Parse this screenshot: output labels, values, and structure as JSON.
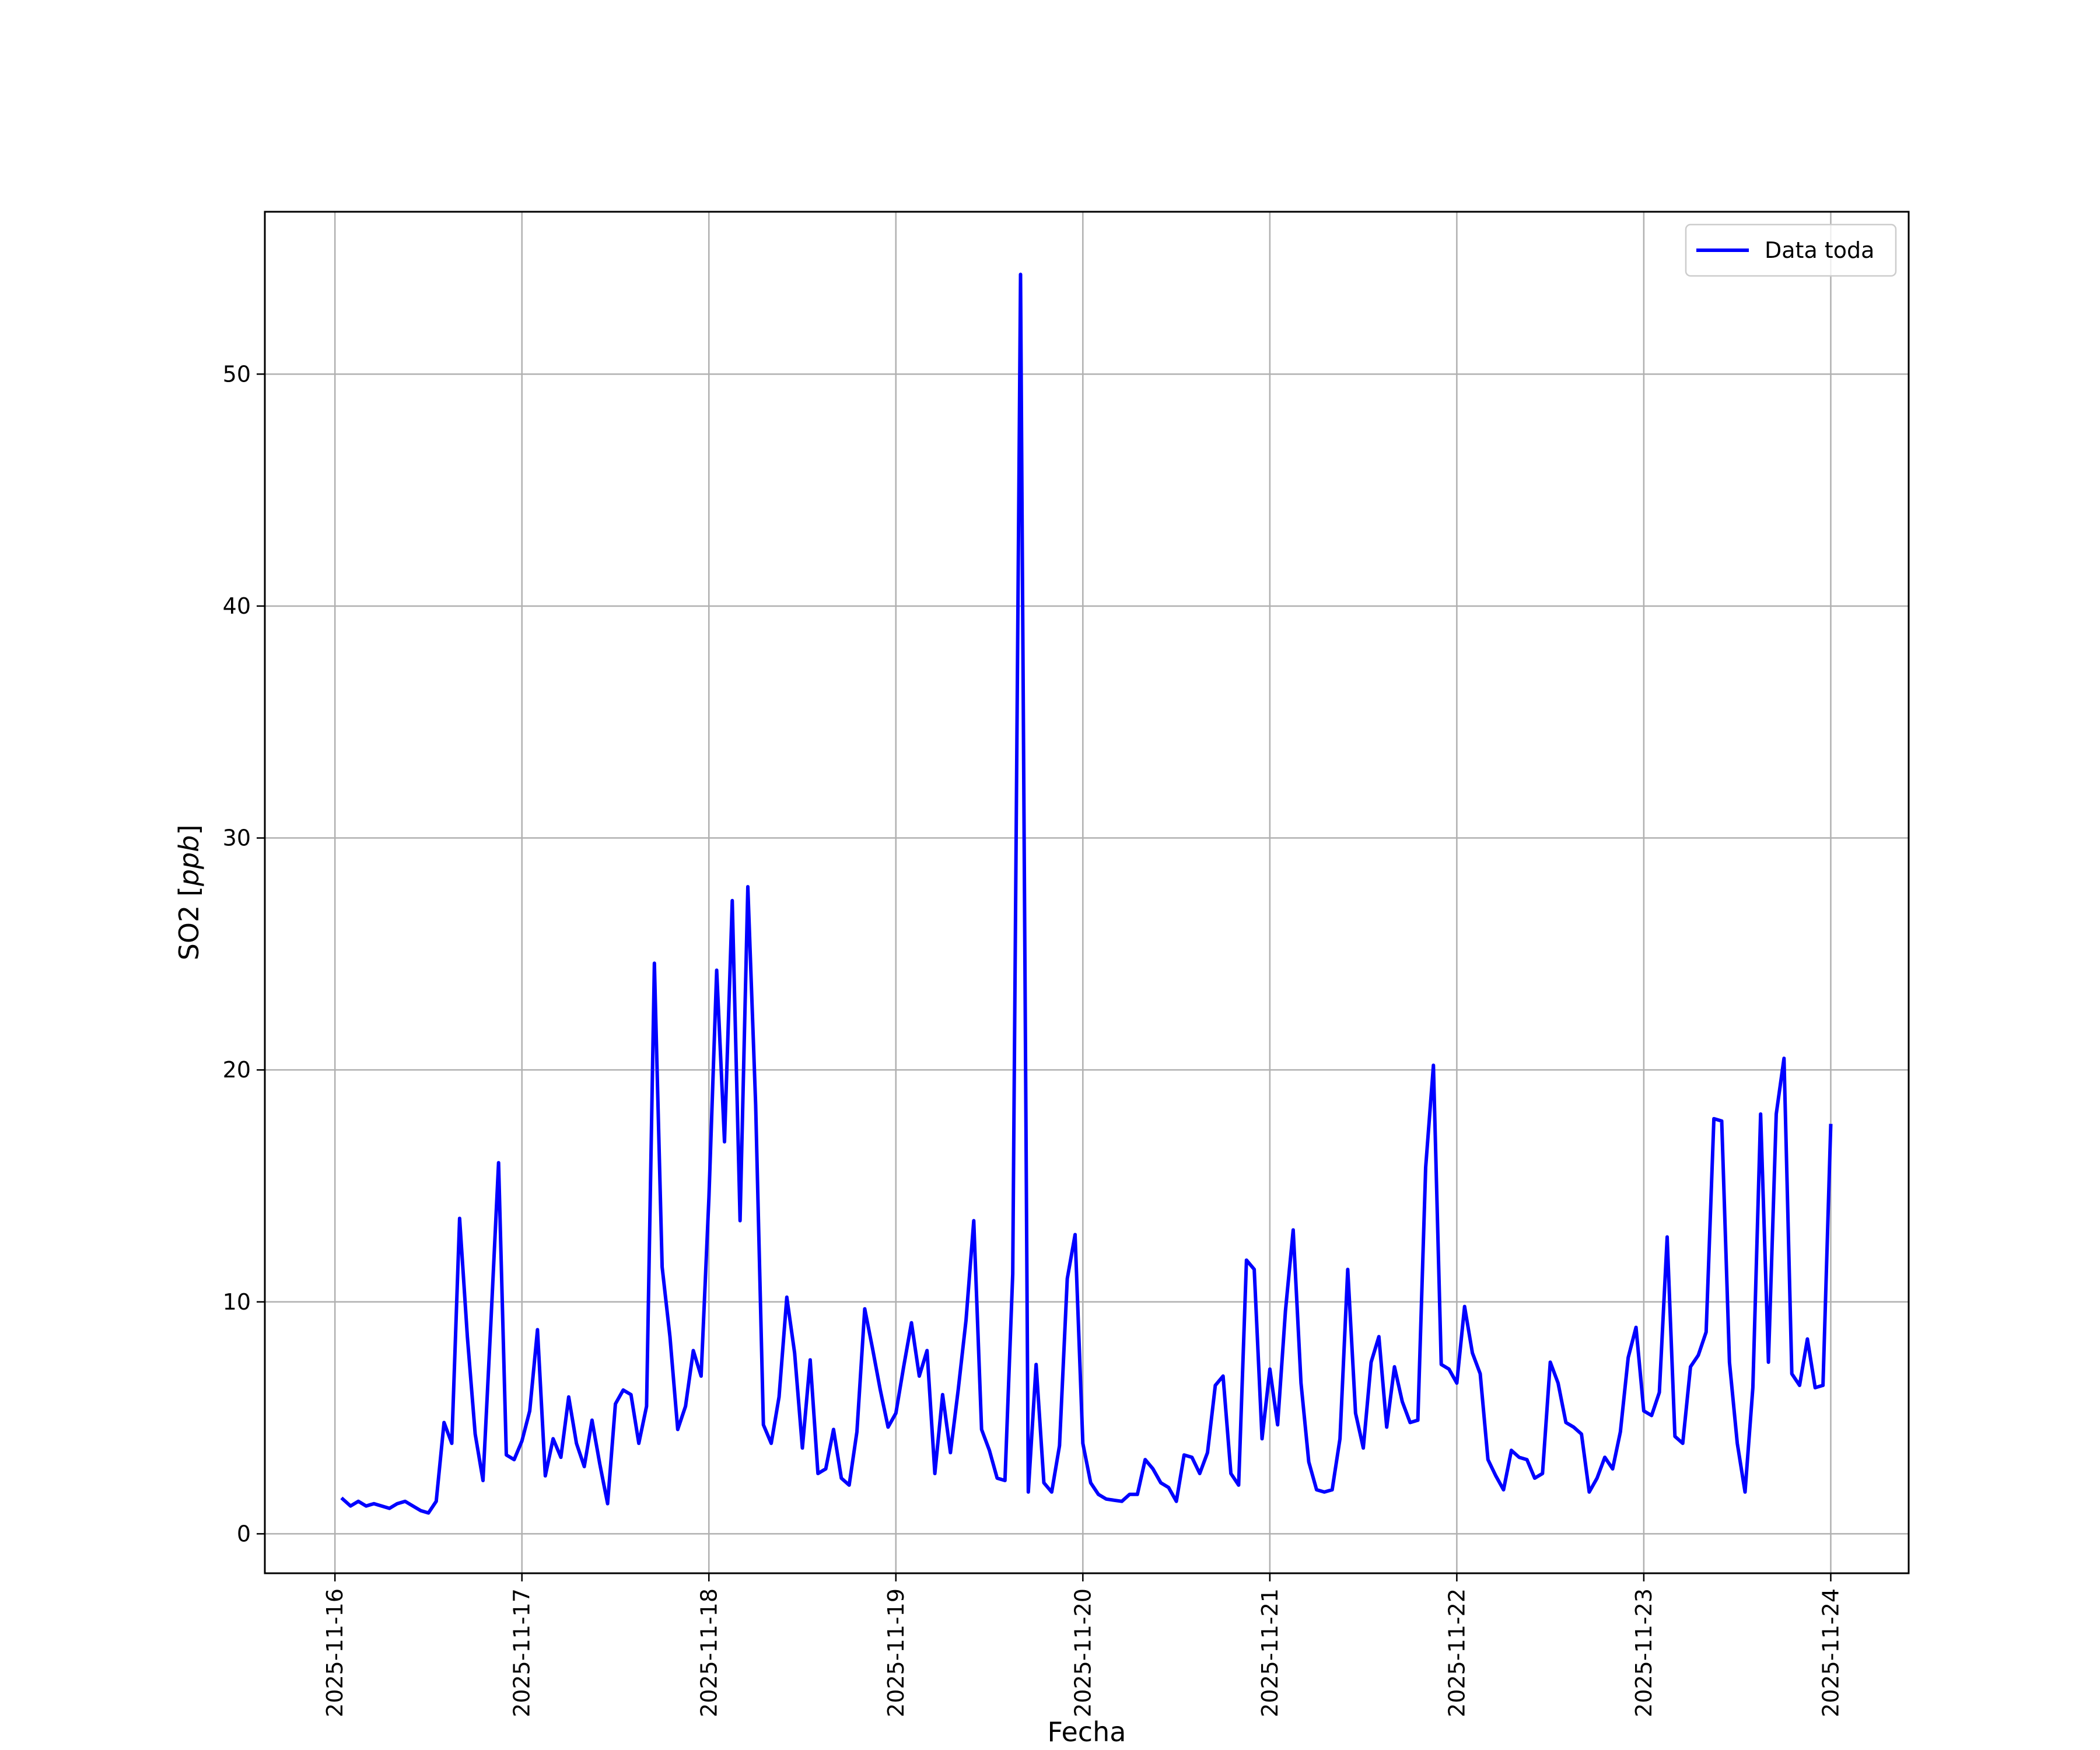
{
  "chart_data": {
    "type": "line",
    "title": "",
    "xlabel": "Fecha",
    "ylabel": "SO2 [",
    "ylabel_math": "ppb",
    "ylabel_close": "]",
    "x_ticks": [
      "2025-11-16",
      "2025-11-17",
      "2025-11-18",
      "2025-11-19",
      "2025-11-20",
      "2025-11-21",
      "2025-11-22",
      "2025-11-23",
      "2025-11-24"
    ],
    "y_ticks": [
      0,
      10,
      20,
      30,
      40,
      50
    ],
    "x_range": [
      "2025-11-15T15:00",
      "2025-11-24T10:00"
    ],
    "ylim": [
      -1.7,
      57
    ],
    "grid": true,
    "legend_position": "top-right",
    "series": [
      {
        "name": "Data toda",
        "color": "#0000ff",
        "x_start": "2025-11-16T01:00",
        "step_hours": 1,
        "values": [
          1.5,
          1.2,
          1.4,
          1.2,
          1.3,
          1.2,
          1.1,
          1.3,
          1.4,
          1.2,
          1.0,
          0.9,
          1.4,
          4.8,
          3.9,
          13.6,
          8.5,
          4.3,
          2.3,
          9.0,
          16.0,
          3.4,
          3.2,
          4.0,
          5.3,
          8.8,
          2.5,
          4.1,
          3.3,
          5.9,
          3.9,
          2.9,
          4.9,
          3.0,
          1.3,
          5.6,
          6.2,
          6.0,
          3.9,
          5.5,
          24.6,
          11.5,
          8.5,
          4.5,
          5.5,
          7.9,
          6.8,
          14.5,
          24.3,
          16.9,
          27.3,
          13.5,
          27.9,
          18.5,
          4.7,
          3.9,
          5.9,
          10.2,
          7.8,
          3.7,
          7.5,
          2.6,
          2.8,
          4.5,
          2.4,
          2.1,
          4.4,
          9.7,
          8.0,
          6.2,
          4.6,
          5.2,
          7.2,
          9.1,
          6.8,
          7.9,
          2.6,
          6.0,
          3.5,
          6.2,
          9.2,
          13.5,
          4.5,
          3.6,
          2.4,
          2.3,
          11.2,
          54.3,
          1.8,
          7.3,
          2.2,
          1.8,
          3.8,
          11.0,
          12.9,
          3.9,
          2.2,
          1.7,
          1.5,
          1.45,
          1.4,
          1.7,
          1.7,
          3.2,
          2.8,
          2.2,
          2.0,
          1.4,
          3.4,
          3.3,
          2.6,
          3.5,
          6.4,
          6.8,
          2.6,
          2.1,
          11.8,
          11.4,
          4.1,
          7.1,
          4.7,
          9.6,
          13.1,
          6.5,
          3.1,
          1.9,
          1.8,
          1.9,
          4.1,
          11.4,
          5.2,
          3.7,
          7.4,
          8.5,
          4.6,
          7.2,
          5.7,
          4.8,
          4.9,
          15.8,
          20.2,
          7.3,
          7.1,
          6.5,
          9.8,
          7.8,
          6.9,
          3.2,
          2.5,
          1.9,
          3.6,
          3.3,
          3.2,
          2.4,
          2.6,
          7.4,
          6.5,
          4.8,
          4.6,
          4.3,
          1.8,
          2.4,
          3.3,
          2.8,
          4.4,
          7.6,
          8.9,
          5.3,
          5.1,
          6.1,
          12.8,
          4.2,
          3.9,
          7.2,
          7.7,
          8.7,
          17.9,
          17.8,
          7.4,
          3.9,
          1.8,
          6.3,
          18.1,
          7.4,
          18.1,
          20.5,
          6.9,
          6.4,
          8.4,
          6.3,
          6.4,
          17.6
        ]
      }
    ]
  }
}
